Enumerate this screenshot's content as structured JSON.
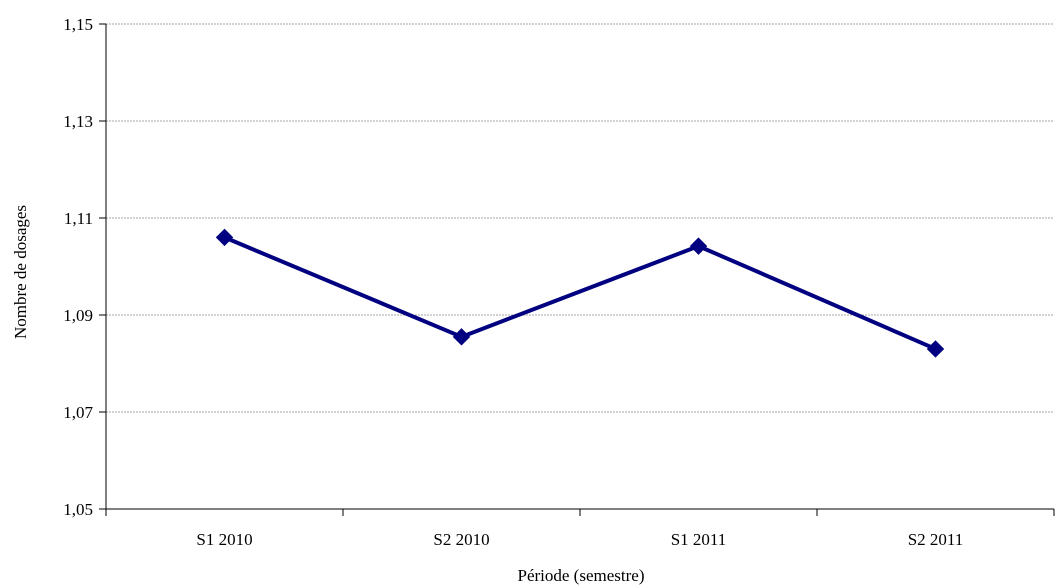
{
  "chart_data": {
    "type": "line",
    "title": "",
    "xlabel": "Période (semestre)",
    "ylabel": "Nombre de dosages",
    "categories": [
      "S1 2010",
      "S2 2010",
      "S1 2011",
      "S2 2011"
    ],
    "y_tick_labels": [
      "1,05",
      "1,07",
      "1,09",
      "1,11",
      "1,13",
      "1,15"
    ],
    "ylim": [
      1.05,
      1.15
    ],
    "y_ticks": [
      1.05,
      1.07,
      1.09,
      1.11,
      1.13,
      1.15
    ],
    "grid": true,
    "legend": "none",
    "marker": "diamond",
    "series": [
      {
        "values": [
          1.106,
          1.0855,
          1.1042,
          1.083
        ],
        "color": "#000080"
      }
    ],
    "colors": {
      "grid": "#a6a6a6",
      "axis": "#000000",
      "series": "#000080"
    }
  }
}
